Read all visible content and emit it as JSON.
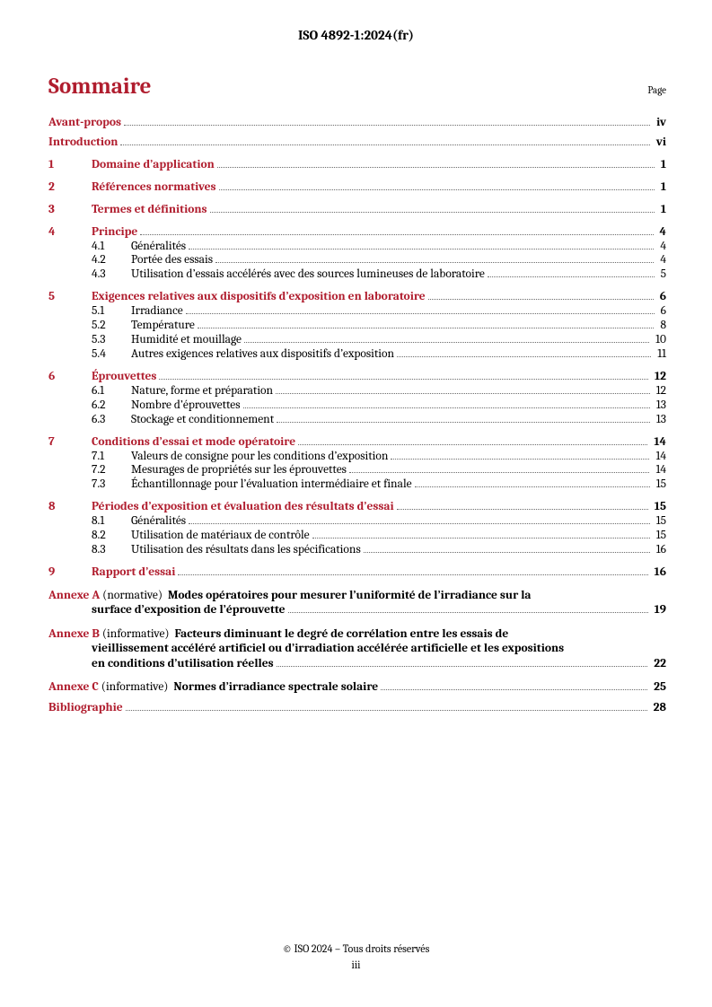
{
  "colors": {
    "accent": "#b01d2e",
    "text": "#000000",
    "leader": "#6a6a6a",
    "background": "#ffffff"
  },
  "typography": {
    "family": "Cambria / serif",
    "header_fontsize_pt": 11,
    "title_fontsize_pt": 19,
    "body_fontsize_pt": 10,
    "footer_fontsize_pt": 9
  },
  "header": {
    "doc_id": "ISO 4892-1:2024(fr)"
  },
  "title": "Sommaire",
  "page_label": "Page",
  "footer": {
    "copyright": "© ISO 2024 – Tous droits réservés",
    "page_num": "iii"
  },
  "front": [
    {
      "label": "Avant-propos",
      "page": "iv",
      "link": true
    },
    {
      "label": "Introduction",
      "page": "vi",
      "link": true
    }
  ],
  "sections": [
    {
      "num": "1",
      "label": "Domaine d’application",
      "page": "1",
      "link": true,
      "subs": []
    },
    {
      "num": "2",
      "label": "Références normatives",
      "page": "1",
      "link": true,
      "subs": []
    },
    {
      "num": "3",
      "label": "Termes et définitions",
      "page": "1",
      "link": true,
      "subs": []
    },
    {
      "num": "4",
      "label": "Principe",
      "page": "4",
      "link": true,
      "subs": [
        {
          "num": "4.1",
          "label": "Généralités",
          "page": "4"
        },
        {
          "num": "4.2",
          "label": "Portée des essais",
          "page": "4"
        },
        {
          "num": "4.3",
          "label": "Utilisation d’essais accélérés avec des sources lumineuses de laboratoire",
          "page": "5"
        }
      ]
    },
    {
      "num": "5",
      "label": "Exigences relatives aux dispositifs d’exposition en laboratoire",
      "page": "6",
      "link": true,
      "subs": [
        {
          "num": "5.1",
          "label": "Irradiance",
          "page": "6"
        },
        {
          "num": "5.2",
          "label": "Température",
          "page": "8"
        },
        {
          "num": "5.3",
          "label": "Humidité et mouillage",
          "page": "10"
        },
        {
          "num": "5.4",
          "label": "Autres exigences relatives aux dispositifs d’exposition",
          "page": "11"
        }
      ]
    },
    {
      "num": "6",
      "label": "Éprouvettes",
      "page": "12",
      "link": true,
      "subs": [
        {
          "num": "6.1",
          "label": "Nature, forme et préparation",
          "page": "12"
        },
        {
          "num": "6.2",
          "label": "Nombre d’éprouvettes",
          "page": "13"
        },
        {
          "num": "6.3",
          "label": "Stockage et conditionnement",
          "page": "13"
        }
      ]
    },
    {
      "num": "7",
      "label": "Conditions d’essai et mode opératoire",
      "page": "14",
      "link": true,
      "subs": [
        {
          "num": "7.1",
          "label": "Valeurs de consigne pour les conditions d’exposition",
          "page": "14"
        },
        {
          "num": "7.2",
          "label": "Mesurages de propriétés sur les éprouvettes",
          "page": "14"
        },
        {
          "num": "7.3",
          "label": "Échantillonnage pour l’évaluation intermédiaire et finale",
          "page": "15"
        }
      ]
    },
    {
      "num": "8",
      "label": "Périodes d’exposition et évaluation des résultats d’essai",
      "page": "15",
      "link": true,
      "subs": [
        {
          "num": "8.1",
          "label": "Généralités",
          "page": "15"
        },
        {
          "num": "8.2",
          "label": "Utilisation de matériaux de contrôle",
          "page": "15"
        },
        {
          "num": "8.3",
          "label": "Utilisation des résultats dans les spécifications",
          "page": "16"
        }
      ]
    },
    {
      "num": "9",
      "label": "Rapport d’essai",
      "page": "16",
      "link": true,
      "subs": []
    }
  ],
  "annexA": {
    "lead": "Annexe A",
    "paren": "(normative)",
    "line1_rest": "Modes opératoires pour mesurer l’uniformité de l’irradiance sur la",
    "line2": "surface d’exposition de l’éprouvette",
    "page": "19"
  },
  "annexB": {
    "lead": "Annexe B",
    "paren": "(informative)",
    "line1_rest": "Facteurs diminuant le degré de corrélation entre les essais de",
    "line2": "vieillissement accéléré artificiel ou d’irradiation accélérée artificielle et les expositions",
    "line3": "en conditions d’utilisation réelles",
    "page": "22"
  },
  "annexC": {
    "lead": "Annexe C",
    "paren": "(informative)",
    "rest": "Normes d’irradiance spectrale solaire",
    "page": "25"
  },
  "biblio": {
    "label": "Bibliographie",
    "page": "28"
  }
}
